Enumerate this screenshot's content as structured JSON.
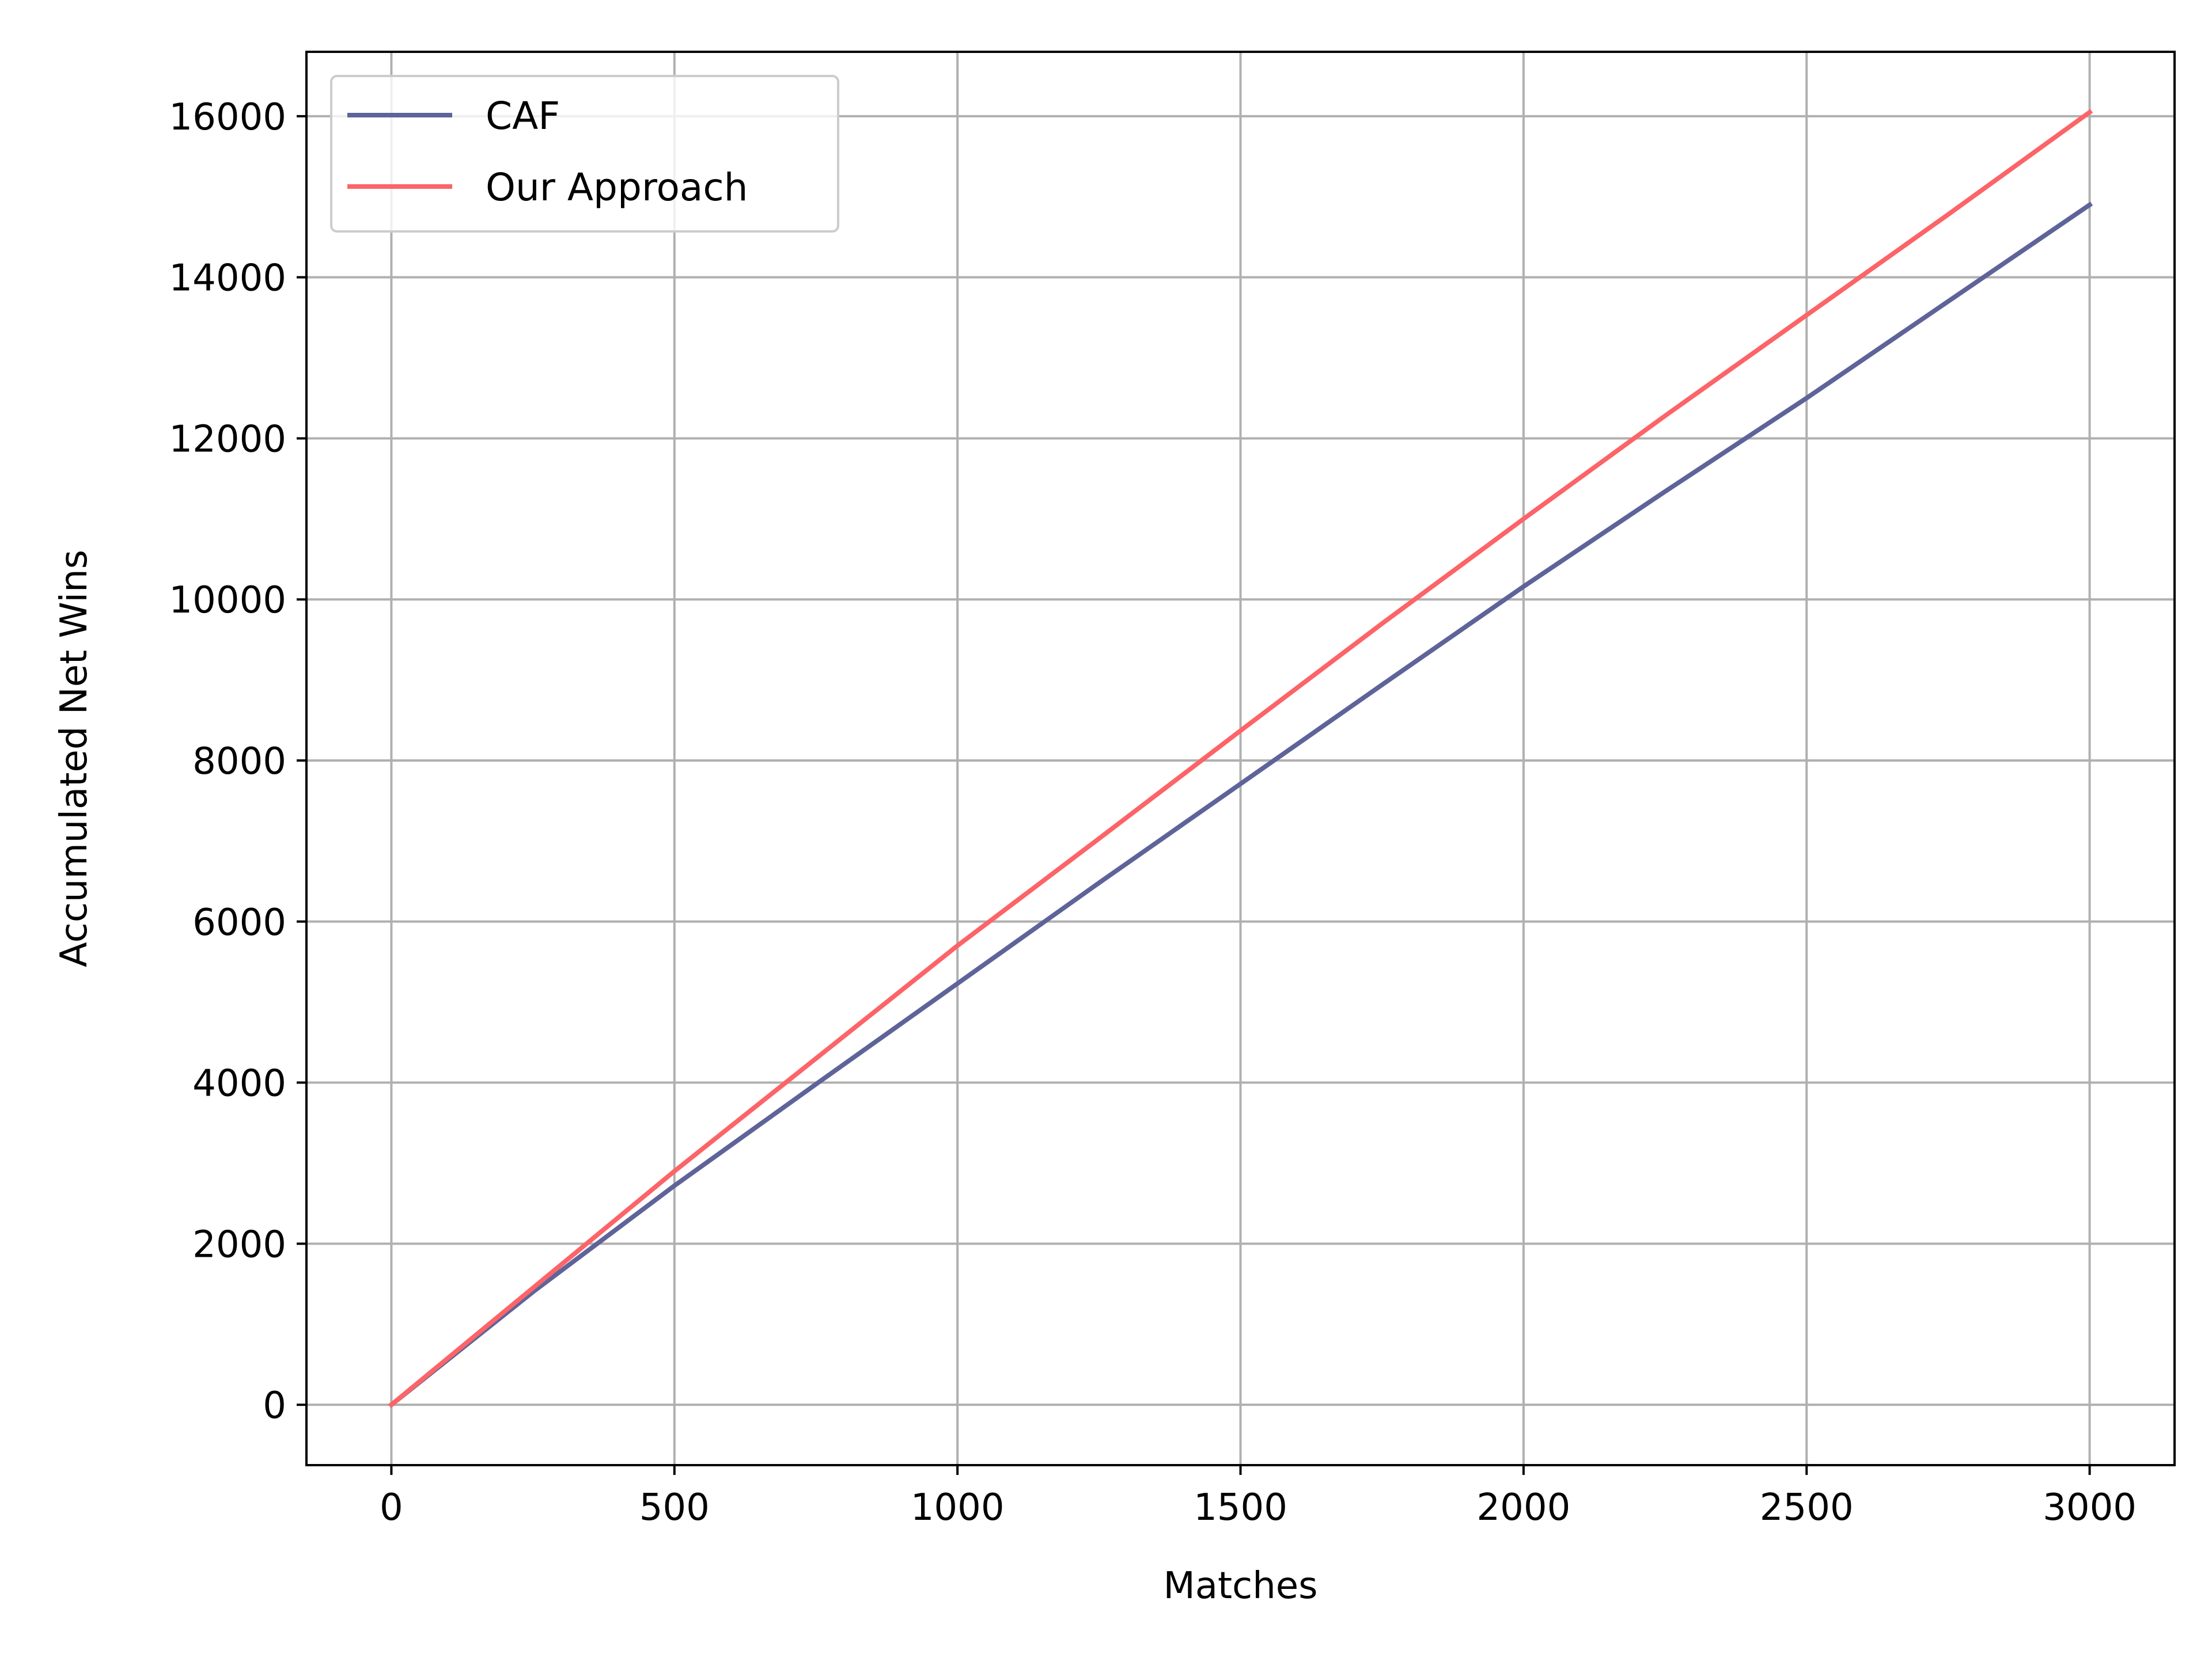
{
  "chart_data": {
    "type": "line",
    "xlabel": "Matches",
    "ylabel": "Accumulated Net Wins",
    "xlim": [
      -150,
      3150
    ],
    "ylim": [
      -750,
      16800
    ],
    "xticks": [
      0,
      500,
      1000,
      1500,
      2000,
      2500,
      3000
    ],
    "yticks": [
      0,
      2000,
      4000,
      6000,
      8000,
      10000,
      12000,
      14000,
      16000
    ],
    "xtick_labels": [
      "0",
      "500",
      "1000",
      "1500",
      "2000",
      "2500",
      "3000"
    ],
    "ytick_labels": [
      "0",
      "2000",
      "4000",
      "6000",
      "8000",
      "10000",
      "12000",
      "14000",
      "16000"
    ],
    "grid": true,
    "legend_position": "upper-left",
    "x": [
      0,
      250,
      500,
      750,
      1000,
      1250,
      1500,
      1750,
      2000,
      2250,
      2500,
      2750,
      3000
    ],
    "series": [
      {
        "name": "CAF",
        "color": "#5e6499",
        "values": [
          0,
          1400,
          2720,
          3980,
          5230,
          6480,
          7710,
          8940,
          10160,
          11340,
          12500,
          13700,
          14900
        ]
      },
      {
        "name": "Our Approach",
        "color": "#fc6468",
        "values": [
          0,
          1450,
          2900,
          4300,
          5700,
          7030,
          8370,
          9700,
          11000,
          12280,
          13530,
          14780,
          16050
        ]
      }
    ]
  }
}
